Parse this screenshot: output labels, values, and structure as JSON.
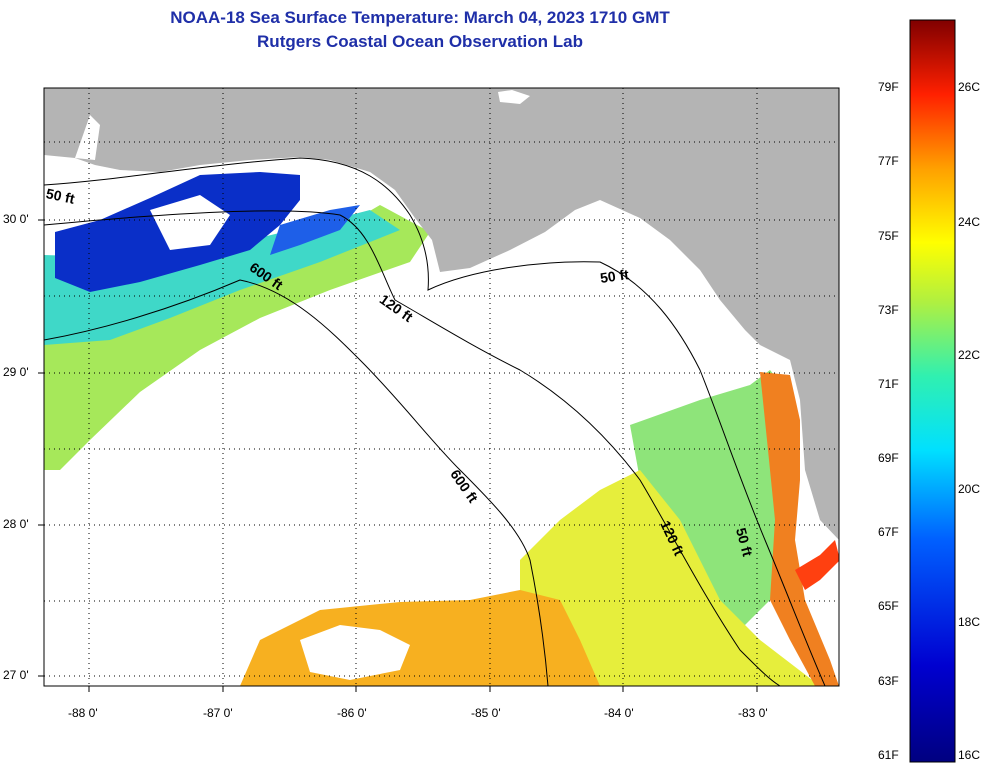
{
  "header": {
    "title": "NOAA-18 Sea Surface Temperature:  March 04, 2023 1710 GMT",
    "subtitle": "Rutgers Coastal Ocean Observation Lab"
  },
  "map": {
    "lon_labels": [
      "-88 0'",
      "-87 0'",
      "-86 0'",
      "-85 0'",
      "-84 0'",
      "-83 0'"
    ],
    "lat_labels": [
      "30 0'",
      "29 0'",
      "28 0'",
      "27 0'"
    ],
    "contour_labels": [
      "50 ft",
      "600 ft",
      "120 ft",
      "50 ft",
      "600 ft",
      "120 ft",
      "50 ft"
    ],
    "colors": {
      "land": "#b4b4b4",
      "cloud": "#ffffff",
      "frame": "#000000"
    }
  },
  "colorbar": {
    "f_labels": [
      "79F",
      "77F",
      "75F",
      "73F",
      "71F",
      "69F",
      "67F",
      "65F",
      "63F",
      "61F"
    ],
    "c_labels": [
      "26C",
      "24C",
      "22C",
      "20C",
      "18C",
      "16C"
    ],
    "range_c": [
      16,
      27
    ]
  }
}
